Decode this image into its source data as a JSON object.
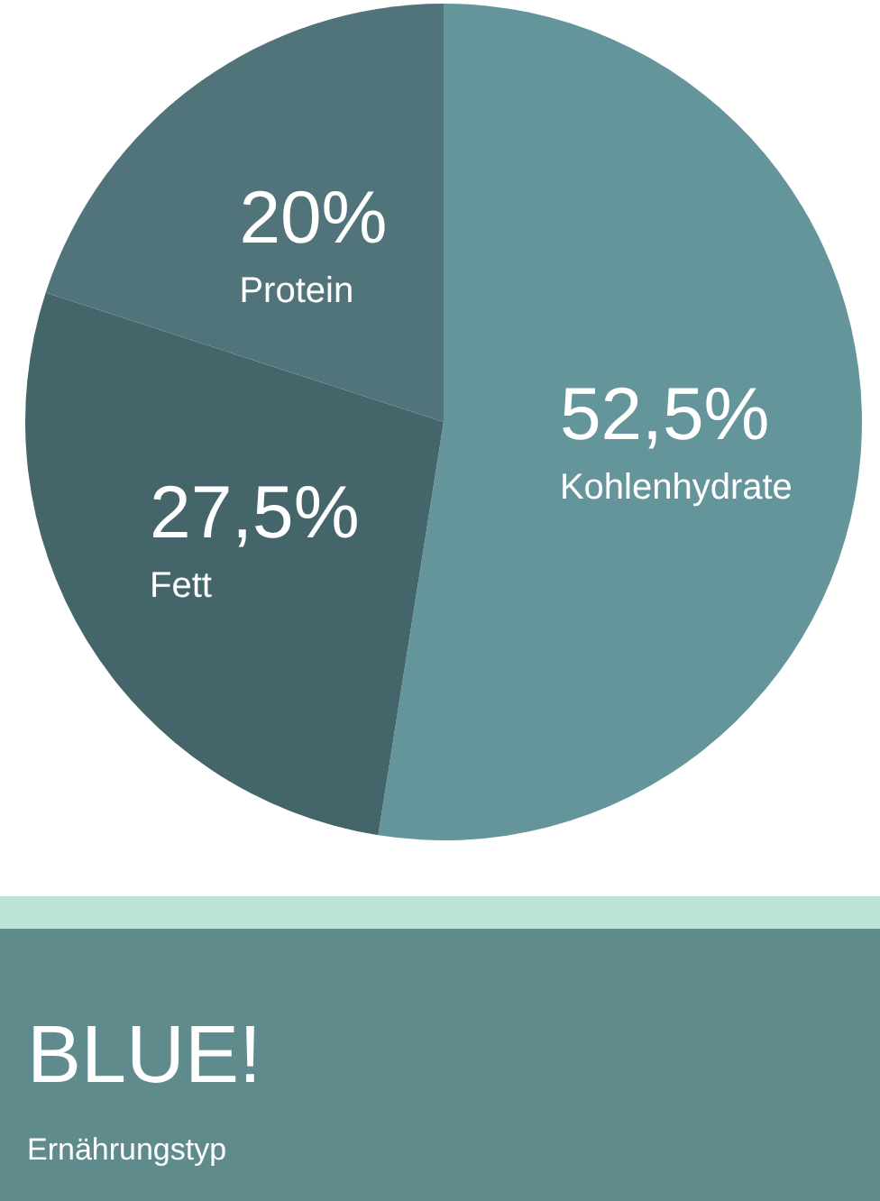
{
  "chart_data": {
    "type": "pie",
    "title": "BLUE!",
    "subtitle": "Ernährungstyp",
    "categories": [
      "Kohlenhydrate",
      "Fett",
      "Protein"
    ],
    "values": [
      52.5,
      27.5,
      20
    ],
    "colors": [
      "#64959b",
      "#44656a",
      "#507479"
    ],
    "value_labels": [
      "52,5%",
      "27,5%",
      "20%"
    ]
  }
}
